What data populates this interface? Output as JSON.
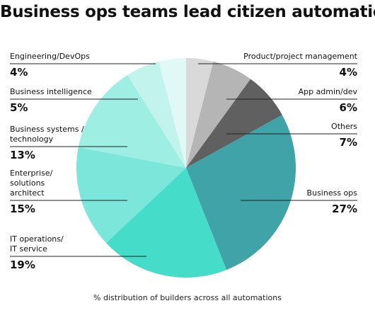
{
  "chart_data": {
    "type": "pie",
    "title": "Business ops teams lead citizen automation",
    "caption": "% distribution of builders across all automations",
    "categories": [
      "Product/project management",
      "App admin/dev",
      "Others",
      "Business ops",
      "IT operations/\nIT service",
      "Enterprise/\nsolutions\narchitect",
      "Business systems /\ntechnology",
      "Business intelligence",
      "Engineering/DevOps"
    ],
    "values": [
      4,
      6,
      7,
      27,
      19,
      15,
      13,
      5,
      4
    ],
    "value_labels": [
      "4%",
      "6%",
      "7%",
      "27%",
      "19%",
      "15%",
      "13%",
      "5%",
      "4%"
    ],
    "colors": [
      "#d9d9d9",
      "#b5b5b5",
      "#606060",
      "#3fa3a8",
      "#45dcc9",
      "#7de6da",
      "#9eeee3",
      "#c3f3ed",
      "#e1f9f6"
    ]
  }
}
